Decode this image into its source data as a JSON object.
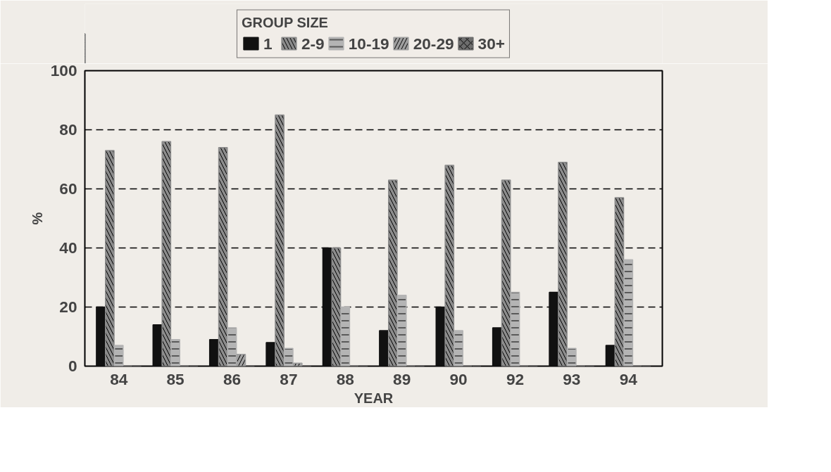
{
  "chart_data": {
    "type": "bar",
    "xlabel": "YEAR",
    "ylabel": "%",
    "legend_title": "GROUP SIZE",
    "categories": [
      "84",
      "85",
      "86",
      "87",
      "88",
      "89",
      "90",
      "92",
      "93",
      "94"
    ],
    "series": [
      {
        "name": "1",
        "color": "#111111",
        "values": [
          20,
          14,
          9,
          8,
          40,
          12,
          20,
          13,
          25,
          7
        ]
      },
      {
        "name": "2-9",
        "color": "#8c8c8c",
        "values": [
          73,
          76,
          74,
          85,
          40,
          63,
          68,
          63,
          69,
          57
        ]
      },
      {
        "name": "10-19",
        "color": "#b4b4b4",
        "values": [
          7,
          9,
          13,
          6,
          20,
          24,
          12,
          25,
          6,
          36
        ]
      },
      {
        "name": "20-29",
        "color": "#a0a0a0",
        "values": [
          0,
          0,
          4,
          1,
          0,
          0,
          0,
          0,
          0,
          0
        ]
      },
      {
        "name": "30+",
        "color": "#6e6e6e",
        "values": [
          0,
          0,
          0,
          0,
          0,
          0,
          0,
          0,
          0,
          0
        ]
      }
    ],
    "ylim": [
      0,
      100
    ],
    "yticks": [
      0,
      20,
      40,
      60,
      80,
      100
    ],
    "grid": "y",
    "legend": "top"
  }
}
